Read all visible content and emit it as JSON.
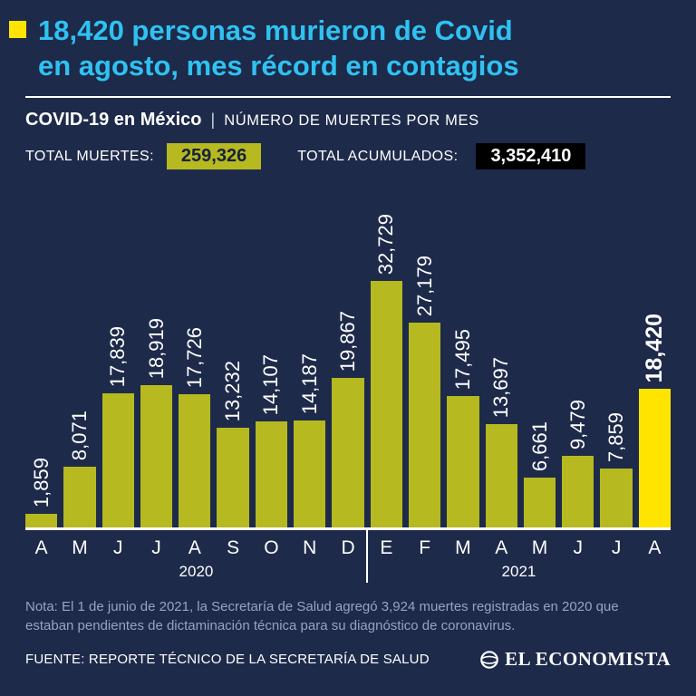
{
  "header": {
    "title_lines": {
      "0": "18,420 personas murieron de Covid",
      "1": "en agosto, mes récord en contagios"
    }
  },
  "subtitle": {
    "bold": "COVID-19 en México",
    "sep": "|",
    "rest": "NÚMERO DE MUERTES POR MES"
  },
  "totals": {
    "label1": "TOTAL MUERTES:",
    "value1": "259,326",
    "label2": "TOTAL ACUMULADOS:",
    "value2": "3,352,410"
  },
  "chart_data": {
    "type": "bar",
    "categories": [
      "A",
      "M",
      "J",
      "J",
      "A",
      "S",
      "O",
      "N",
      "D",
      "E",
      "F",
      "M",
      "A",
      "M",
      "J",
      "J",
      "A"
    ],
    "values": [
      1859,
      8071,
      17839,
      18919,
      17726,
      13232,
      14107,
      14187,
      19867,
      32729,
      27179,
      17495,
      13697,
      6661,
      9479,
      7859,
      18420
    ],
    "labels": [
      "1,859",
      "8,071",
      "17,839",
      "18,919",
      "17,726",
      "13,232",
      "14,107",
      "14,187",
      "19,867",
      "32,729",
      "27,179",
      "17,495",
      "13,697",
      "6,661",
      "9,479",
      "7,859",
      "18,420"
    ],
    "highlight_index": 16,
    "groups": [
      {
        "year": "2020",
        "span": 9
      },
      {
        "year": "2021",
        "span": 8
      }
    ],
    "ylim": [
      0,
      32729
    ],
    "bar_color": "#b6b91f",
    "highlight_color": "#ffe400",
    "legend": "none",
    "grid": false
  },
  "note": "Nota: El 1 de junio de 2021, la Secretaría de Salud agregó 3,924 muertes registradas en 2020 que estaban pendientes de dictaminación técnica para su diagnóstico de coronavirus.",
  "footer": {
    "source": "FUENTE: REPORTE TÉCNICO DE LA SECRETARÍA DE SALUD",
    "logo": "EL ECONOMISTA"
  }
}
